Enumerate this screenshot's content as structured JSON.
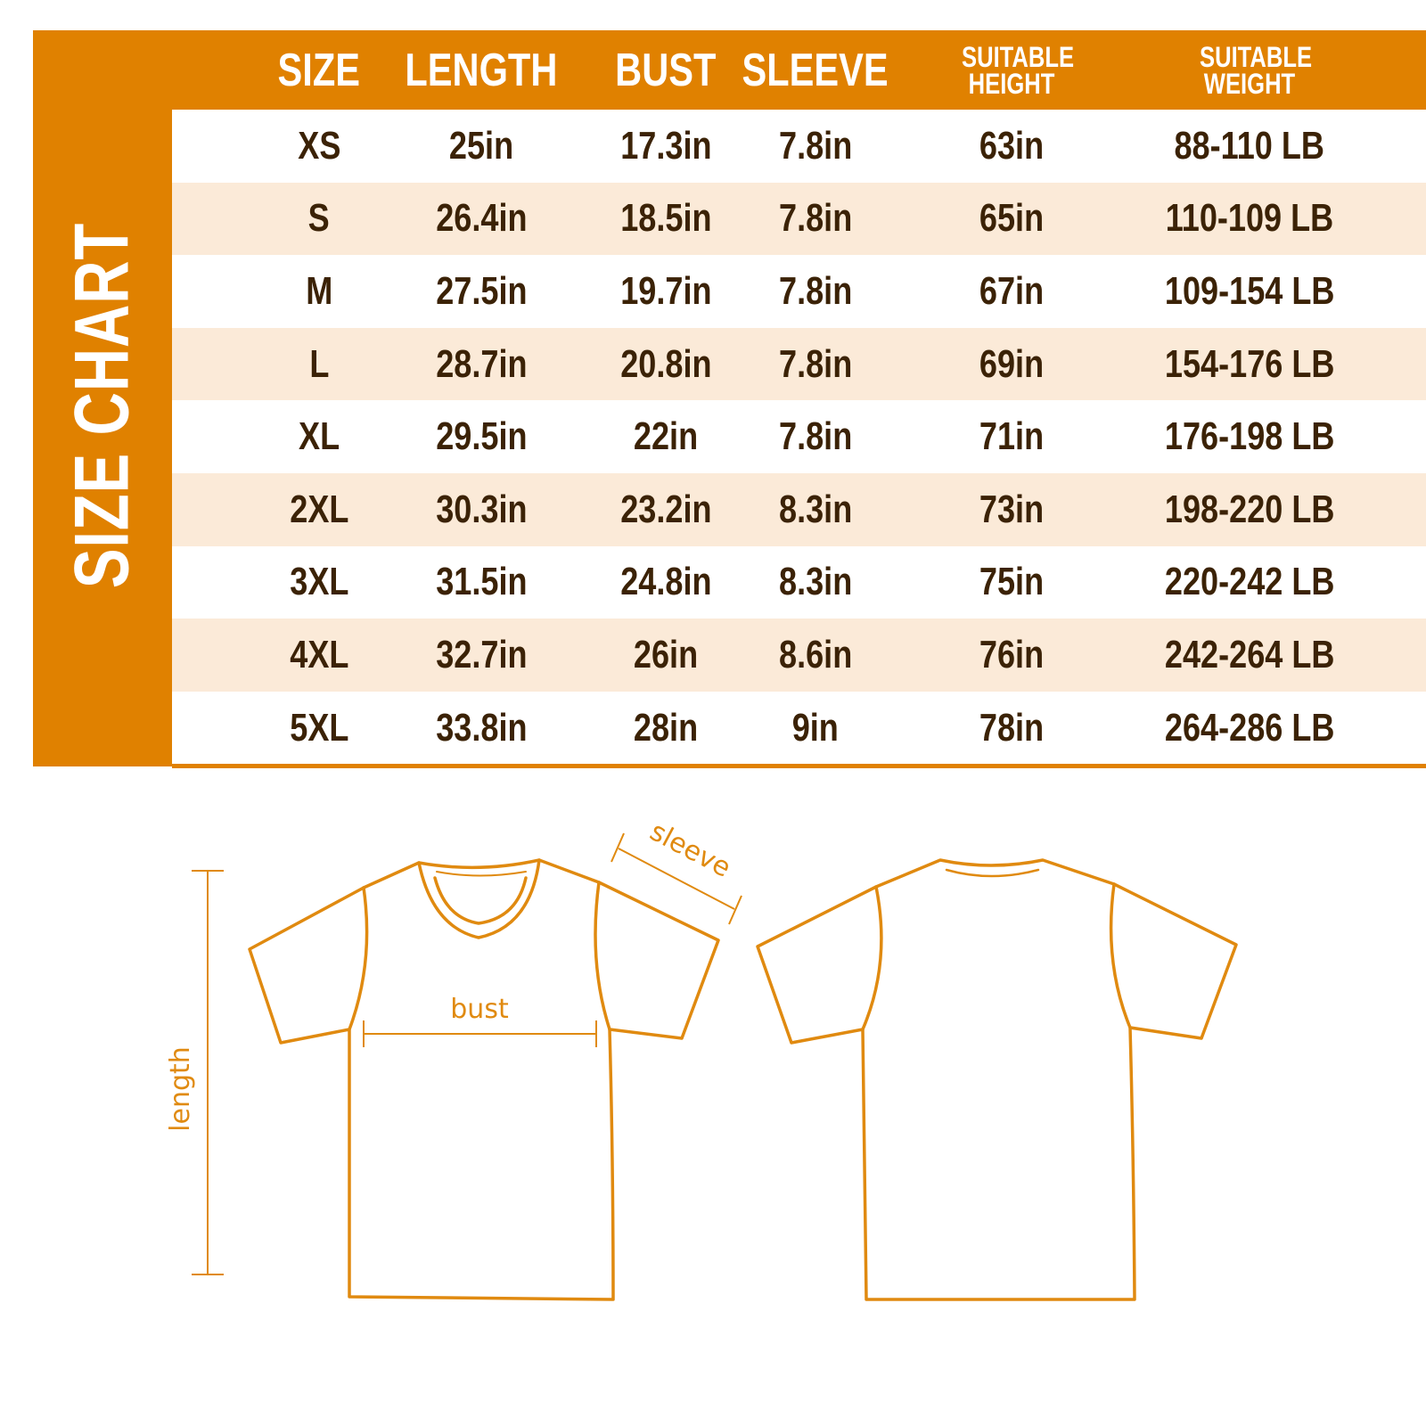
{
  "colors": {
    "accent": "#E08100",
    "stripe": "#FBEAD8",
    "text": "#3B2206",
    "line": "#E08A10"
  },
  "title": "SIZE CHART",
  "columns": [
    "SIZE",
    "LENGTH",
    "BUST",
    "SLEEVE",
    "SUITABLE HEIGHT",
    "SUITABLE WEIGHT"
  ],
  "rows": [
    [
      "XS",
      "25in",
      "17.3in",
      "7.8in",
      "63in",
      "88-110 LB"
    ],
    [
      "S",
      "26.4in",
      "18.5in",
      "7.8in",
      "65in",
      "110-109 LB"
    ],
    [
      "M",
      "27.5in",
      "19.7in",
      "7.8in",
      "67in",
      "109-154 LB"
    ],
    [
      "L",
      "28.7in",
      "20.8in",
      "7.8in",
      "69in",
      "154-176 LB"
    ],
    [
      "XL",
      "29.5in",
      "22in",
      "7.8in",
      "71in",
      "176-198 LB"
    ],
    [
      "2XL",
      "30.3in",
      "23.2in",
      "8.3in",
      "73in",
      "198-220 LB"
    ],
    [
      "3XL",
      "31.5in",
      "24.8in",
      "8.3in",
      "75in",
      "220-242 LB"
    ],
    [
      "4XL",
      "32.7in",
      "26in",
      "8.6in",
      "76in",
      "242-264 LB"
    ],
    [
      "5XL",
      "33.8in",
      "28in",
      "9in",
      "78in",
      "264-286 LB"
    ]
  ],
  "diagram": {
    "length_label": "length",
    "bust_label": "bust",
    "sleeve_label": "sleeve"
  }
}
